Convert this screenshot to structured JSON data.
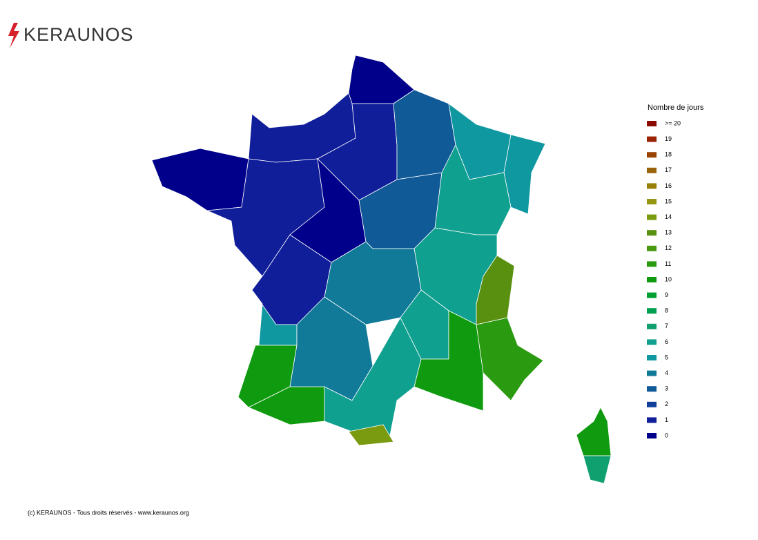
{
  "logo": "KERAUNOS",
  "legend": {
    "title": "Nombre de jours",
    "levels": [
      {
        "value": 20,
        "label": ">= 20"
      },
      19,
      18,
      17,
      16,
      15,
      14,
      13,
      12,
      11,
      10,
      9,
      8,
      7,
      6,
      5,
      4,
      3,
      2,
      1,
      0
    ],
    "colors": [
      "#8b0a00",
      "#9a2404",
      "#9a4404",
      "#9a640c",
      "#968008",
      "#969610",
      "#7a9a10",
      "#5a9010",
      "#489a10",
      "#2a9a10",
      "#109a10",
      "#00a030",
      "#00a050",
      "#10a070",
      "#10a090",
      "#1098a0",
      "#107a98",
      "#105a98",
      "#10409a",
      "#101e9a",
      "#00008b"
    ]
  },
  "regions": [
    0,
    1,
    0,
    1,
    3,
    5,
    5,
    1,
    0,
    3,
    6,
    6,
    1,
    4,
    5,
    10,
    10,
    4,
    6,
    14,
    6,
    10,
    11,
    13,
    10,
    7
  ],
  "footer": "(c) KERAUNOS - Tous droits réservés - www.keraunos.org"
}
